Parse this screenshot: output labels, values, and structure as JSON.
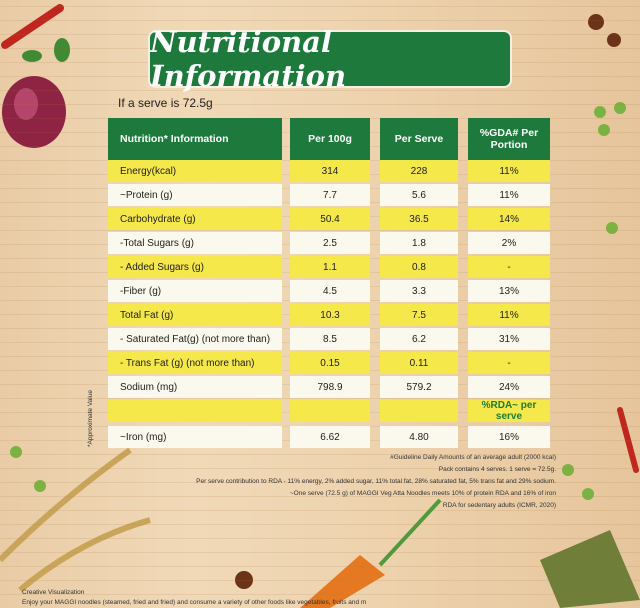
{
  "header": {
    "title": "Nutritional Information"
  },
  "serve_note": "If a serve is 72.5g",
  "table": {
    "columns": [
      "Nutrition* Information",
      "Per 100g",
      "Per Serve",
      "%GDA# Per Portion"
    ],
    "rows": [
      [
        "Energy(kcal)",
        "314",
        "228",
        "11%"
      ],
      [
        "~Protein (g)",
        "7.7",
        "5.6",
        "11%"
      ],
      [
        "Carbohydrate (g)",
        "50.4",
        "36.5",
        "14%"
      ],
      [
        "-Total Sugars (g)",
        "2.5",
        "1.8",
        "2%"
      ],
      [
        "- Added Sugars (g)",
        "1.1",
        "0.8",
        "-"
      ],
      [
        "-Fiber (g)",
        "4.5",
        "3.3",
        "13%"
      ],
      [
        "Total Fat (g)",
        "10.3",
        "7.5",
        "11%"
      ],
      [
        "- Saturated Fat(g) (not more than)",
        "8.5",
        "6.2",
        "31%"
      ],
      [
        "- Trans Fat (g) (not more than)",
        "0.15",
        "0.11",
        "-"
      ],
      [
        "Sodium (mg)",
        "798.9",
        "579.2",
        "24%"
      ],
      [
        null,
        null,
        null,
        "%RDA~ per serve"
      ],
      [
        "~Iron (mg)",
        "6.62",
        "4.80",
        "16%"
      ]
    ]
  },
  "side_note": "*Approximate Value",
  "footnotes": [
    "#Guideline Daily Amounts of an average adult (2000 kcal)",
    "Pack contains 4 serves. 1 serve = 72.5g.",
    "Per serve contribution to RDA - 11% energy, 2% added sugar, 11% total fat, 28% saturated fat, 5% trans fat and 29% sodium.",
    "~One serve (72.5 g) of MAGGI Veg Atta Noodles meets 10% of protein RDA and 16% of iron",
    "RDA for sedentary adults (ICMR, 2020)"
  ],
  "bottom_notes": [
    "Creative Visualization",
    "Enjoy your MAGGI noodles (steamed, fried and fried) and consume a variety of other foods like vegetables, fruits and m"
  ]
}
